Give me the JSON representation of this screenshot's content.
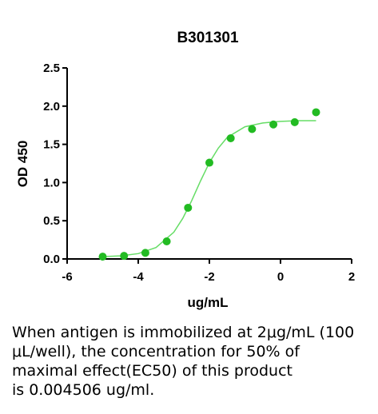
{
  "chart_data": {
    "type": "scatter",
    "title": "B301301",
    "x_label": "ug/mL",
    "y_label": "OD 450",
    "x": [
      -5,
      -4.4,
      -3.8,
      -3.2,
      -2.6,
      -2.0,
      -1.4,
      -0.8,
      -0.2,
      0.4,
      1.0
    ],
    "values": [
      0.03,
      0.04,
      0.08,
      0.23,
      0.67,
      1.26,
      1.58,
      1.7,
      1.76,
      1.79,
      1.92
    ],
    "color": "#22bb22",
    "fit": {
      "x": [
        -5,
        -4.5,
        -4,
        -3.5,
        -3,
        -2.75,
        -2.5,
        -2.25,
        -2,
        -1.75,
        -1.5,
        -1,
        -0.5,
        0,
        0.5,
        1
      ],
      "values": [
        0.03,
        0.04,
        0.07,
        0.15,
        0.35,
        0.53,
        0.76,
        1.02,
        1.26,
        1.45,
        1.59,
        1.73,
        1.78,
        1.8,
        1.81,
        1.81
      ],
      "color": "#66dd66"
    },
    "xlim": [
      -6,
      2
    ],
    "xticks": [
      -6,
      -4,
      -2,
      0,
      2
    ],
    "ylim": [
      0,
      2.5
    ],
    "yticks": [
      {
        "value": 0,
        "label": "0.0"
      },
      {
        "value": 0.5,
        "label": "0.5"
      },
      {
        "value": 1,
        "label": "1.0"
      },
      {
        "value": 1.5,
        "label": "1.5"
      },
      {
        "value": 2,
        "label": "2.0"
      },
      {
        "value": 2.5,
        "label": "2.5"
      }
    ]
  },
  "caption": [
    "When antigen is immobilized at 2μg/mL (100",
    "μL/well), the concentration for 50% of",
    "maximal effect(EC50) of this product",
    "is 0.004506 ug/ml."
  ]
}
